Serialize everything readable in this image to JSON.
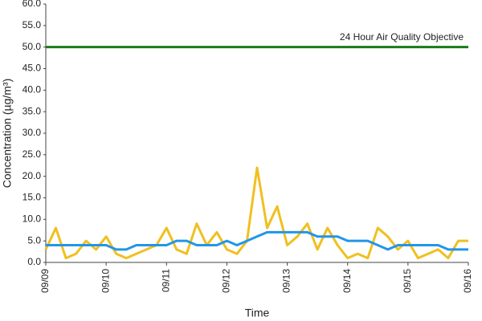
{
  "chart_data": {
    "type": "line",
    "x_label": "Time",
    "y_label": "Concentration (µg/m³)",
    "x": [
      0,
      4,
      8,
      12,
      16,
      20,
      24,
      28,
      32,
      36,
      40,
      44,
      48,
      52,
      56,
      60,
      64,
      68,
      72,
      76,
      80,
      84,
      88,
      92,
      96,
      100,
      104,
      108,
      112,
      116,
      120,
      124,
      128,
      132,
      136,
      140,
      144,
      148,
      152,
      156,
      160,
      164,
      168
    ],
    "series": [
      {
        "color": "#f0c020",
        "values": [
          3,
          8,
          1,
          2,
          5,
          3,
          6,
          2,
          1,
          2,
          3,
          4,
          8,
          3,
          2,
          9,
          4,
          7,
          3,
          2,
          5,
          22,
          8,
          13,
          4,
          6,
          9,
          3,
          8,
          4,
          1,
          2,
          1,
          8,
          6,
          3,
          5,
          1,
          2,
          3,
          1,
          5,
          5
        ]
      },
      {
        "color": "#2196e8",
        "values": [
          4,
          4,
          4,
          4,
          4,
          4,
          4,
          3,
          3,
          4,
          4,
          4,
          4,
          5,
          5,
          4,
          4,
          4,
          5,
          4,
          5,
          6,
          7,
          7,
          7,
          7,
          7,
          6,
          6,
          6,
          5,
          5,
          5,
          4,
          3,
          4,
          4,
          4,
          4,
          4,
          3,
          3,
          3
        ]
      }
    ],
    "objective": {
      "label": "24 Hour Air Quality Objective",
      "value": 50,
      "color": "#1a7a1a"
    },
    "xlim": [
      0,
      168
    ],
    "xticks": [
      {
        "value": 0,
        "label": "09/09"
      },
      {
        "value": 24,
        "label": "09/10"
      },
      {
        "value": 48,
        "label": "09/11"
      },
      {
        "value": 72,
        "label": "09/12"
      },
      {
        "value": 96,
        "label": "09/13"
      },
      {
        "value": 120,
        "label": "09/14"
      },
      {
        "value": 144,
        "label": "09/15"
      },
      {
        "value": 168,
        "label": "09/16"
      }
    ],
    "ylim": [
      0,
      60
    ],
    "yticks": [
      {
        "value": 0,
        "label": "0.0"
      },
      {
        "value": 5,
        "label": "5.0"
      },
      {
        "value": 10,
        "label": "10.0"
      },
      {
        "value": 15,
        "label": "15.0"
      },
      {
        "value": 20,
        "label": "20.0"
      },
      {
        "value": 25,
        "label": "25.0"
      },
      {
        "value": 30,
        "label": "30.0"
      },
      {
        "value": 35,
        "label": "35.0"
      },
      {
        "value": 40,
        "label": "40.0"
      },
      {
        "value": 45,
        "label": "45.0"
      },
      {
        "value": 50,
        "label": "50.0"
      },
      {
        "value": 55,
        "label": "55.0"
      },
      {
        "value": 60,
        "label": "60.0"
      }
    ],
    "grid": false
  }
}
